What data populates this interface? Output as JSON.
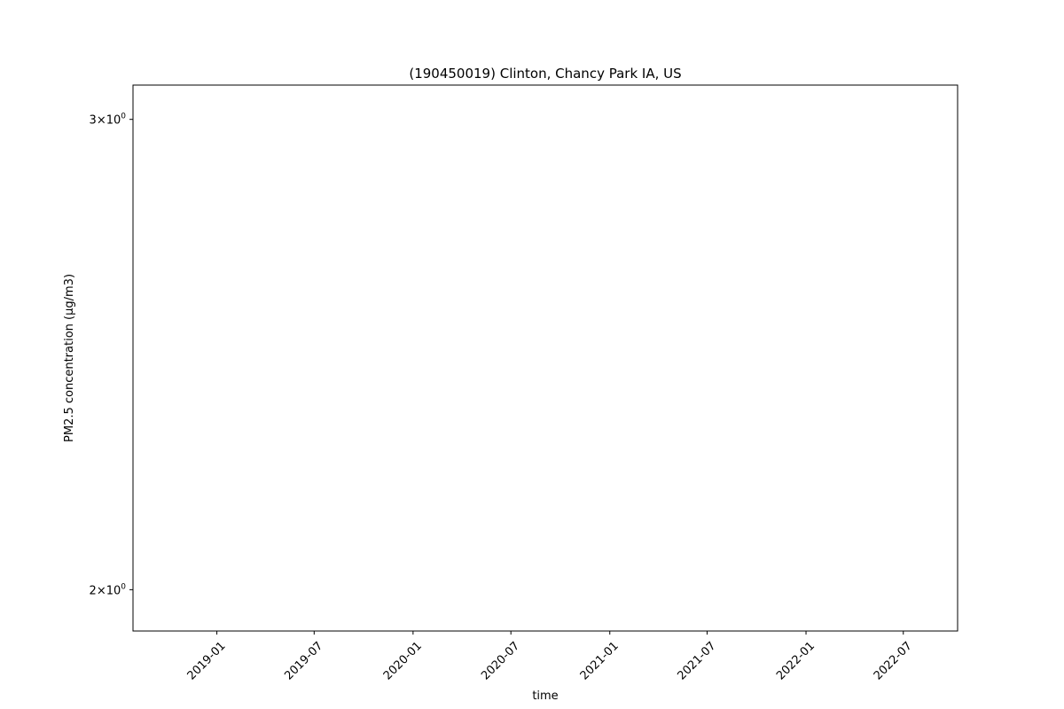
{
  "chart_data": {
    "type": "line",
    "title": "(190450019) Clinton, Chancy Park IA, US",
    "xlabel": "time",
    "ylabel": "PM2.5 concentration (μg/m3)",
    "xscale": "time",
    "yscale": "log",
    "xlim": [
      "2018-07-29",
      "2022-10-10"
    ],
    "ylim": [
      1.93,
      3.09
    ],
    "x_ticks": [
      {
        "value": "2019-01-01",
        "label": "2019-01"
      },
      {
        "value": "2019-07-01",
        "label": "2019-07"
      },
      {
        "value": "2020-01-01",
        "label": "2020-01"
      },
      {
        "value": "2020-07-01",
        "label": "2020-07"
      },
      {
        "value": "2021-01-01",
        "label": "2021-01"
      },
      {
        "value": "2021-07-01",
        "label": "2021-07"
      },
      {
        "value": "2022-01-01",
        "label": "2022-01"
      },
      {
        "value": "2022-07-01",
        "label": "2022-07"
      }
    ],
    "y_ticks": [
      {
        "value": 3,
        "mantissa": "3",
        "base": "10",
        "exponent": "0"
      },
      {
        "value": 2,
        "mantissa": "2",
        "base": "10",
        "exponent": "0"
      }
    ],
    "grid": false,
    "series": []
  }
}
